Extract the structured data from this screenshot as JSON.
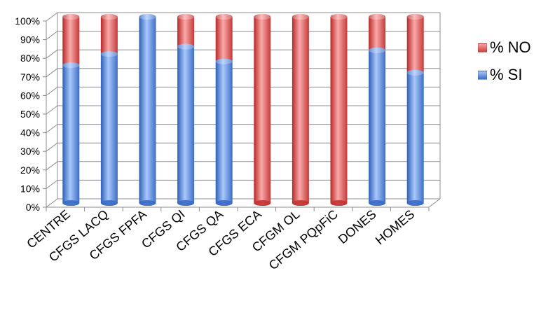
{
  "chart_data": {
    "type": "bar",
    "stacked": true,
    "percent": true,
    "three_d": true,
    "categories": [
      "CENTRE",
      "CFGS LACQ",
      "CFGS FPFA",
      "CFGS QI",
      "CFGS QA",
      "CFGS ECA",
      "CFGM OL",
      "CFGM PQpFiC",
      "DONES",
      "HOMES"
    ],
    "series": [
      {
        "name": "% SI",
        "color": "#4a7fd8",
        "values": [
          74,
          80,
          100,
          84,
          76,
          0,
          0,
          0,
          82,
          70
        ]
      },
      {
        "name": "% NO",
        "color": "#e05555",
        "values": [
          26,
          20,
          0,
          16,
          24,
          100,
          100,
          100,
          18,
          30
        ]
      }
    ],
    "ylim": [
      0,
      100
    ],
    "yticks": [
      "0%",
      "10%",
      "20%",
      "30%",
      "40%",
      "50%",
      "60%",
      "70%",
      "80%",
      "90%",
      "100%"
    ],
    "grid": true,
    "legend_position": "right"
  }
}
